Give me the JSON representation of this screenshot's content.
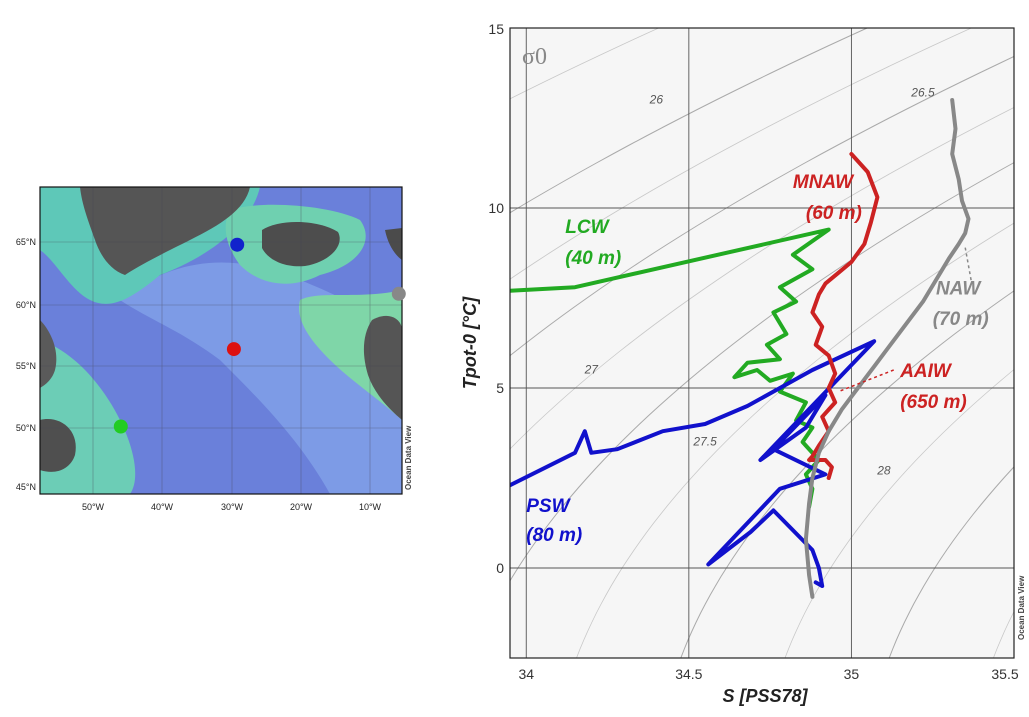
{
  "map": {
    "lat_labels": [
      "65°N",
      "60°N",
      "55°N",
      "50°N",
      "45°N"
    ],
    "lon_labels": [
      "50°W",
      "40°W",
      "30°W",
      "20°W",
      "10°W"
    ],
    "watermark": "Ocean Data View",
    "stations": [
      {
        "name": "LCW",
        "lon": -45.5,
        "lat": 50.0,
        "color": "#22cc22"
      },
      {
        "name": "PSW",
        "lon": -27.5,
        "lat": 64.8,
        "color": "#1122cc"
      },
      {
        "name": "AAIW",
        "lon": -28.0,
        "lat": 56.3,
        "color": "#dd1111"
      },
      {
        "name": "NAW",
        "lon": -2.5,
        "lat": 60.8,
        "color": "#888888"
      }
    ]
  },
  "chart_data": {
    "type": "line",
    "xlabel": "S [PSS78]",
    "ylabel": "Tpot-0 [°C]",
    "xlim": [
      33.95,
      35.5
    ],
    "ylim": [
      -2.5,
      15
    ],
    "xticks": [
      "34",
      "34.5",
      "35",
      "35.5"
    ],
    "yticks": [
      "0",
      "5",
      "10",
      "15"
    ],
    "xtick_values": [
      34,
      34.5,
      35,
      35.5
    ],
    "ytick_values": [
      0,
      5,
      10,
      15
    ],
    "grid": true,
    "isopycnal_label": "σ0",
    "isopycnals": [
      {
        "label": "26",
        "value": 26.0,
        "label_at": [
          34.4,
          12.9
        ]
      },
      {
        "label": "26.5",
        "value": 26.5,
        "label_at": [
          35.22,
          13.1
        ]
      },
      {
        "label": "27",
        "value": 27.0,
        "label_at": [
          34.2,
          5.4
        ]
      },
      {
        "label": "27.5",
        "value": 27.5,
        "label_at": [
          34.55,
          3.4
        ]
      },
      {
        "label": "28",
        "value": 28.0,
        "label_at": [
          35.1,
          2.6
        ]
      }
    ],
    "watermark": "Ocean Data View",
    "series": [
      {
        "name": "LCW",
        "depth": "(40 m)",
        "color": "#22aa22",
        "label_color": "#22aa22",
        "label_at": [
          34.12,
          9.3
        ],
        "depth_at": [
          34.12,
          8.45
        ],
        "x": [
          33.95,
          34.15,
          34.93,
          34.82,
          34.88,
          34.78,
          34.83,
          34.76,
          34.8,
          34.74,
          34.78,
          34.68,
          34.64,
          34.71,
          34.75,
          34.82,
          34.78,
          34.86,
          34.83,
          34.88,
          34.85,
          34.9,
          34.86,
          34.88,
          34.87
        ],
        "y": [
          7.7,
          7.8,
          9.4,
          8.7,
          8.3,
          7.8,
          7.4,
          7.1,
          6.5,
          6.2,
          5.8,
          5.7,
          5.3,
          5.5,
          5.2,
          5.4,
          4.9,
          4.6,
          4.1,
          3.9,
          3.5,
          3.0,
          2.6,
          2.2,
          1.7
        ]
      },
      {
        "name": "PSW",
        "depth": "(80 m)",
        "color": "#1111cc",
        "label_color": "#1111cc",
        "label_at": [
          34.0,
          1.55
        ],
        "depth_at": [
          34.0,
          0.75
        ],
        "x": [
          33.95,
          34.15,
          34.18,
          34.2,
          34.28,
          34.42,
          34.55,
          34.68,
          34.88,
          35.07,
          34.72,
          34.86,
          34.92,
          34.76,
          34.92,
          34.78,
          34.56,
          34.69,
          34.76,
          34.88,
          34.9,
          34.91,
          34.89
        ],
        "y": [
          2.3,
          3.2,
          3.8,
          3.2,
          3.3,
          3.8,
          4.0,
          4.5,
          5.5,
          6.3,
          3.0,
          3.9,
          4.8,
          3.3,
          2.6,
          2.2,
          0.1,
          1.0,
          1.6,
          0.5,
          0.0,
          -0.5,
          -0.4
        ]
      },
      {
        "name": "MNAW",
        "depth": "(60 m)",
        "color": "#cc2222",
        "label_color": "#cc2222",
        "label_at": [
          34.82,
          10.55
        ],
        "depth_at": [
          34.86,
          9.7
        ],
        "x": [
          35.0,
          35.05,
          35.08,
          35.06,
          35.04,
          35.0,
          34.96,
          34.92,
          34.9,
          34.88,
          34.91,
          34.89,
          34.93,
          34.95,
          34.93,
          34.95,
          34.91,
          34.93,
          34.9,
          34.88,
          34.87,
          34.92,
          34.94,
          34.93
        ],
        "y": [
          11.5,
          11.0,
          10.3,
          9.6,
          9.0,
          8.5,
          8.2,
          7.9,
          7.6,
          7.1,
          6.7,
          6.2,
          5.9,
          5.4,
          5.0,
          4.6,
          4.2,
          3.8,
          3.4,
          3.1,
          3.0,
          3.0,
          2.8,
          2.5
        ]
      },
      {
        "name": "AAIW",
        "depth": "(650 m)",
        "color": "#cc2222",
        "label_color": "#cc2222",
        "label_at": [
          35.15,
          5.3
        ],
        "depth_at": [
          35.15,
          4.45
        ],
        "pointer_from": [
          35.13,
          5.5
        ],
        "pointer_to": [
          34.96,
          4.9
        ]
      },
      {
        "name": "NAW",
        "depth": "(70 m)",
        "color": "#888888",
        "label_color": "#888888",
        "label_at": [
          35.26,
          7.6
        ],
        "depth_at": [
          35.25,
          6.75
        ],
        "pointer_from": [
          35.35,
          8.9
        ],
        "pointer_to": [
          35.37,
          7.9
        ],
        "x": [
          35.31,
          35.32,
          35.31,
          35.33,
          35.34,
          35.36,
          35.35,
          35.33,
          35.3,
          35.26,
          35.22,
          35.17,
          35.12,
          35.07,
          35.02,
          34.97,
          34.93,
          34.9,
          34.88,
          34.87,
          34.86,
          34.87,
          34.88
        ],
        "y": [
          13.0,
          12.2,
          11.5,
          10.8,
          10.2,
          9.7,
          9.3,
          9.0,
          8.6,
          8.0,
          7.4,
          6.8,
          6.2,
          5.6,
          5.0,
          4.4,
          3.8,
          3.2,
          2.5,
          1.8,
          0.8,
          -0.2,
          -0.8
        ]
      }
    ]
  }
}
